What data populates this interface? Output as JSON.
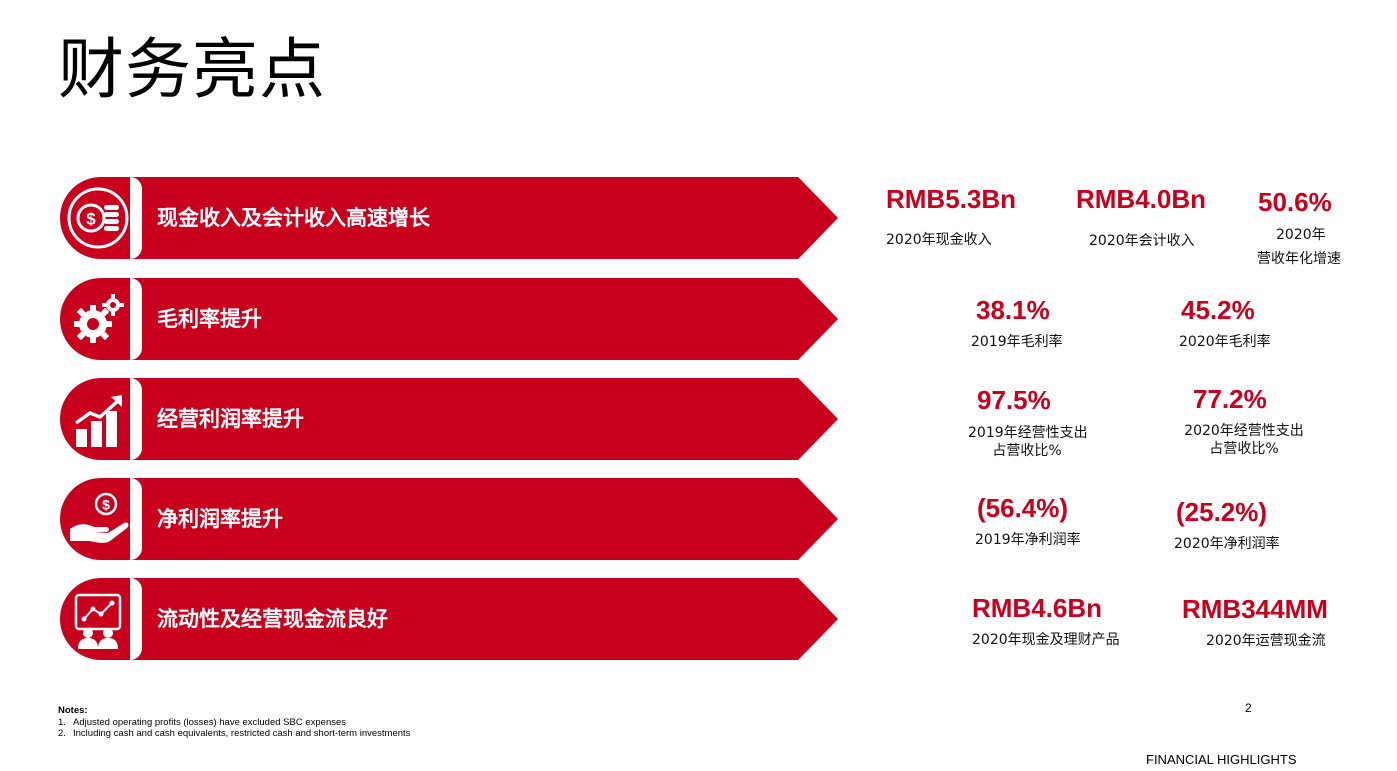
{
  "title": "财务亮点",
  "colors": {
    "accent": "#c8001e",
    "text": "#111111",
    "background": "#ffffff"
  },
  "rows": [
    {
      "label": "现金收入及会计收入高速增长",
      "icon": "coins-dollar-icon"
    },
    {
      "label": "毛利率提升",
      "icon": "gears-icon"
    },
    {
      "label": "经营利润率提升",
      "icon": "growth-bar-chart-icon"
    },
    {
      "label": "净利润率提升",
      "icon": "hand-holding-dollar-icon"
    },
    {
      "label": "流动性及经营现金流良好",
      "icon": "presentation-board-icon"
    }
  ],
  "kpis": {
    "row1": [
      {
        "value": "RMB5.3Bn",
        "caption": "2020年现金收入"
      },
      {
        "value": "RMB4.0Bn",
        "caption": "2020年会计收入"
      },
      {
        "value": "50.6%",
        "caption_line1": "2020年",
        "caption_line2": "营收年化增速"
      }
    ],
    "row2": [
      {
        "value": "38.1%",
        "caption": "2019年毛利率"
      },
      {
        "value": "45.2%",
        "caption": "2020年毛利率"
      }
    ],
    "row3": [
      {
        "value": "97.5%",
        "caption_line1": "2019年经营性支出",
        "caption_line2": "占营收比%"
      },
      {
        "value": "77.2%",
        "caption_line1": "2020年经营性支出",
        "caption_line2": "占营收比%"
      }
    ],
    "row4": [
      {
        "value": "(56.4%)",
        "caption": "2019年净利润率"
      },
      {
        "value": "(25.2%)",
        "caption": "2020年净利润率"
      }
    ],
    "row5": [
      {
        "value": "RMB4.6Bn",
        "caption": "2020年现金及理财产品"
      },
      {
        "value": "RMB344MM",
        "caption": "2020年运营现金流"
      }
    ]
  },
  "notes": {
    "title": "Notes:",
    "items": [
      {
        "num": "1.",
        "text": "Adjusted operating profits (losses) have excluded SBC expenses"
      },
      {
        "num": "2.",
        "text": "Including cash and cash equivalents, restricted cash and short-term  investments"
      }
    ]
  },
  "page_number": "2",
  "section_label": "FINANCIAL HIGHLIGHTS"
}
